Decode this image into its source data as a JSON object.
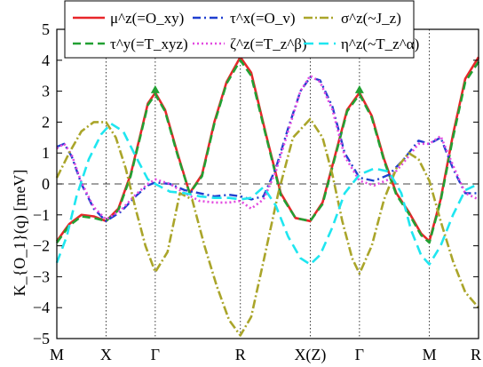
{
  "chart_data": {
    "type": "line",
    "title": "",
    "xlabel": "",
    "ylabel": "K_{O_1}(q) [meV]",
    "ylim": [
      -5,
      5
    ],
    "yticks": [
      -5,
      -4,
      -3,
      -2,
      -1,
      0,
      1,
      2,
      3,
      4,
      5
    ],
    "xticks": [
      {
        "label": "M",
        "x": 0
      },
      {
        "label": "X",
        "x": 1
      },
      {
        "label": "Γ",
        "x": 2
      },
      {
        "label": "R",
        "x": 3.73
      },
      {
        "label": "X(Z)",
        "x": 5.15
      },
      {
        "label": "Γ",
        "x": 6.15
      },
      {
        "label": "M",
        "x": 7.57
      },
      {
        "label": "R",
        "x": 8.57
      }
    ],
    "xlim": [
      0,
      8.57
    ],
    "zero_line": true,
    "legend_position": "top",
    "series": [
      {
        "name": "μ^z(=O_xy)",
        "color": "#e8262a",
        "dash": "",
        "width": 2.6,
        "markers": [
          {
            "x": 2,
            "y": 3.05
          },
          {
            "x": 6.15,
            "y": 3.05
          }
        ],
        "x": [
          0,
          0.25,
          0.5,
          0.75,
          1,
          1.25,
          1.5,
          1.7,
          1.85,
          2,
          2.2,
          2.45,
          2.7,
          2.95,
          3.2,
          3.45,
          3.73,
          3.95,
          4.25,
          4.55,
          4.85,
          5.15,
          5.4,
          5.65,
          5.9,
          6.15,
          6.4,
          6.65,
          6.9,
          7.15,
          7.4,
          7.57,
          7.8,
          8.05,
          8.3,
          8.57
        ],
        "y": [
          -1.85,
          -1.3,
          -1.0,
          -1.05,
          -1.2,
          -0.8,
          0.3,
          1.6,
          2.6,
          2.95,
          2.4,
          1.0,
          -0.3,
          0.3,
          2.0,
          3.3,
          4.1,
          3.6,
          1.6,
          -0.3,
          -1.1,
          -1.2,
          -0.6,
          0.9,
          2.4,
          2.95,
          2.2,
          0.8,
          -0.3,
          -0.9,
          -1.6,
          -1.85,
          -0.5,
          1.6,
          3.4,
          4.1
        ]
      },
      {
        "name": "τ^y(=T_xyz)",
        "color": "#22a033",
        "dash": "9,5",
        "width": 2.6,
        "markers": [],
        "x": [
          0,
          0.25,
          0.5,
          0.75,
          1,
          1.25,
          1.5,
          1.7,
          1.85,
          2,
          2.2,
          2.45,
          2.7,
          2.95,
          3.2,
          3.45,
          3.73,
          3.95,
          4.25,
          4.55,
          4.85,
          5.15,
          5.4,
          5.65,
          5.9,
          6.15,
          6.4,
          6.65,
          6.9,
          7.15,
          7.4,
          7.57,
          7.8,
          8.05,
          8.3,
          8.57
        ],
        "y": [
          -1.9,
          -1.35,
          -1.05,
          -1.1,
          -1.2,
          -0.85,
          0.25,
          1.55,
          2.55,
          2.9,
          2.35,
          0.95,
          -0.3,
          0.25,
          1.95,
          3.25,
          4.0,
          3.5,
          1.55,
          -0.35,
          -1.1,
          -1.2,
          -0.65,
          0.85,
          2.35,
          2.9,
          2.15,
          0.75,
          -0.35,
          -0.95,
          -1.65,
          -1.9,
          -0.55,
          1.5,
          3.3,
          3.95
        ]
      },
      {
        "name": "τ^x(=O_v)",
        "color": "#1f3fcf",
        "dash": "9,4,2,4",
        "width": 2.4,
        "markers": [],
        "x": [
          0,
          0.15,
          0.3,
          0.5,
          0.75,
          1,
          1.3,
          1.6,
          1.85,
          2,
          2.3,
          2.6,
          2.9,
          3.2,
          3.5,
          3.73,
          3.95,
          4.2,
          4.45,
          4.7,
          4.95,
          5.15,
          5.35,
          5.6,
          5.85,
          6.15,
          6.45,
          6.75,
          7.05,
          7.35,
          7.57,
          7.8,
          8.05,
          8.3,
          8.57
        ],
        "y": [
          1.2,
          1.3,
          0.9,
          0.0,
          -0.8,
          -1.2,
          -0.9,
          -0.4,
          -0.05,
          0.05,
          0.0,
          -0.2,
          -0.3,
          -0.4,
          -0.35,
          -0.4,
          -0.5,
          -0.4,
          0.5,
          1.8,
          3.0,
          3.45,
          3.35,
          2.5,
          1.0,
          0.2,
          0.1,
          0.3,
          0.8,
          1.4,
          1.3,
          1.5,
          0.5,
          -0.3,
          -0.3
        ]
      },
      {
        "name": "ζ^z(=T_z^β)",
        "color": "#e24ae0",
        "dash": "2,3",
        "width": 2.6,
        "markers": [],
        "x": [
          0,
          0.15,
          0.3,
          0.5,
          0.75,
          1,
          1.3,
          1.6,
          1.85,
          2,
          2.3,
          2.6,
          2.9,
          3.2,
          3.5,
          3.73,
          3.95,
          4.2,
          4.45,
          4.7,
          4.95,
          5.15,
          5.35,
          5.6,
          5.85,
          6.15,
          6.45,
          6.75,
          7.05,
          7.35,
          7.57,
          7.8,
          8.05,
          8.3,
          8.57
        ],
        "y": [
          1.15,
          1.3,
          0.95,
          0.05,
          -0.75,
          -1.15,
          -0.85,
          -0.35,
          0.0,
          0.15,
          0.0,
          -0.3,
          -0.55,
          -0.6,
          -0.6,
          -0.55,
          -0.8,
          -0.5,
          0.4,
          1.7,
          3.0,
          3.5,
          3.3,
          2.4,
          0.9,
          0.1,
          -0.05,
          0.15,
          0.7,
          1.3,
          1.3,
          1.55,
          0.6,
          -0.3,
          -0.5
        ]
      },
      {
        "name": "σ^z(~J_z)",
        "color": "#aaa52a",
        "dash": "10,3,2,3",
        "width": 2.6,
        "markers": [],
        "x": [
          0,
          0.25,
          0.5,
          0.75,
          1,
          1.2,
          1.4,
          1.6,
          1.8,
          2,
          2.25,
          2.5,
          2.75,
          3.0,
          3.25,
          3.5,
          3.73,
          3.95,
          4.2,
          4.5,
          4.8,
          5.15,
          5.4,
          5.6,
          5.8,
          6.0,
          6.15,
          6.4,
          6.65,
          6.9,
          7.15,
          7.35,
          7.57,
          7.8,
          8.05,
          8.3,
          8.57
        ],
        "y": [
          0.2,
          1.0,
          1.7,
          2.0,
          2.0,
          1.5,
          0.5,
          -0.8,
          -2.0,
          -2.85,
          -2.2,
          -0.3,
          -0.5,
          -2.0,
          -3.3,
          -4.4,
          -4.9,
          -4.3,
          -2.5,
          -0.3,
          1.5,
          2.1,
          1.5,
          0.3,
          -1.2,
          -2.4,
          -2.9,
          -2.0,
          -0.5,
          0.5,
          1.0,
          0.8,
          0.1,
          -1.2,
          -2.5,
          -3.5,
          -4.0
        ]
      },
      {
        "name": "η^z(~T_z^α)",
        "color": "#1fe6f0",
        "dash": "11,6",
        "width": 2.6,
        "markers": [],
        "x": [
          0,
          0.2,
          0.4,
          0.65,
          0.9,
          1.1,
          1.35,
          1.6,
          1.85,
          2,
          2.3,
          2.6,
          2.9,
          3.2,
          3.5,
          3.73,
          3.95,
          4.2,
          4.45,
          4.7,
          4.95,
          5.15,
          5.35,
          5.6,
          5.85,
          6.15,
          6.45,
          6.75,
          7.0,
          7.2,
          7.4,
          7.57,
          7.8,
          8.05,
          8.3,
          8.57
        ],
        "y": [
          -2.55,
          -1.7,
          -0.4,
          0.8,
          1.6,
          1.95,
          1.7,
          0.9,
          0.15,
          0.0,
          -0.25,
          -0.3,
          -0.4,
          -0.45,
          -0.45,
          -0.5,
          -0.45,
          -0.1,
          -0.7,
          -1.7,
          -2.4,
          -2.6,
          -2.3,
          -1.4,
          -0.3,
          0.3,
          0.5,
          0.4,
          -0.3,
          -1.5,
          -2.3,
          -2.6,
          -2.0,
          -1.0,
          -0.2,
          0.0
        ]
      }
    ]
  }
}
